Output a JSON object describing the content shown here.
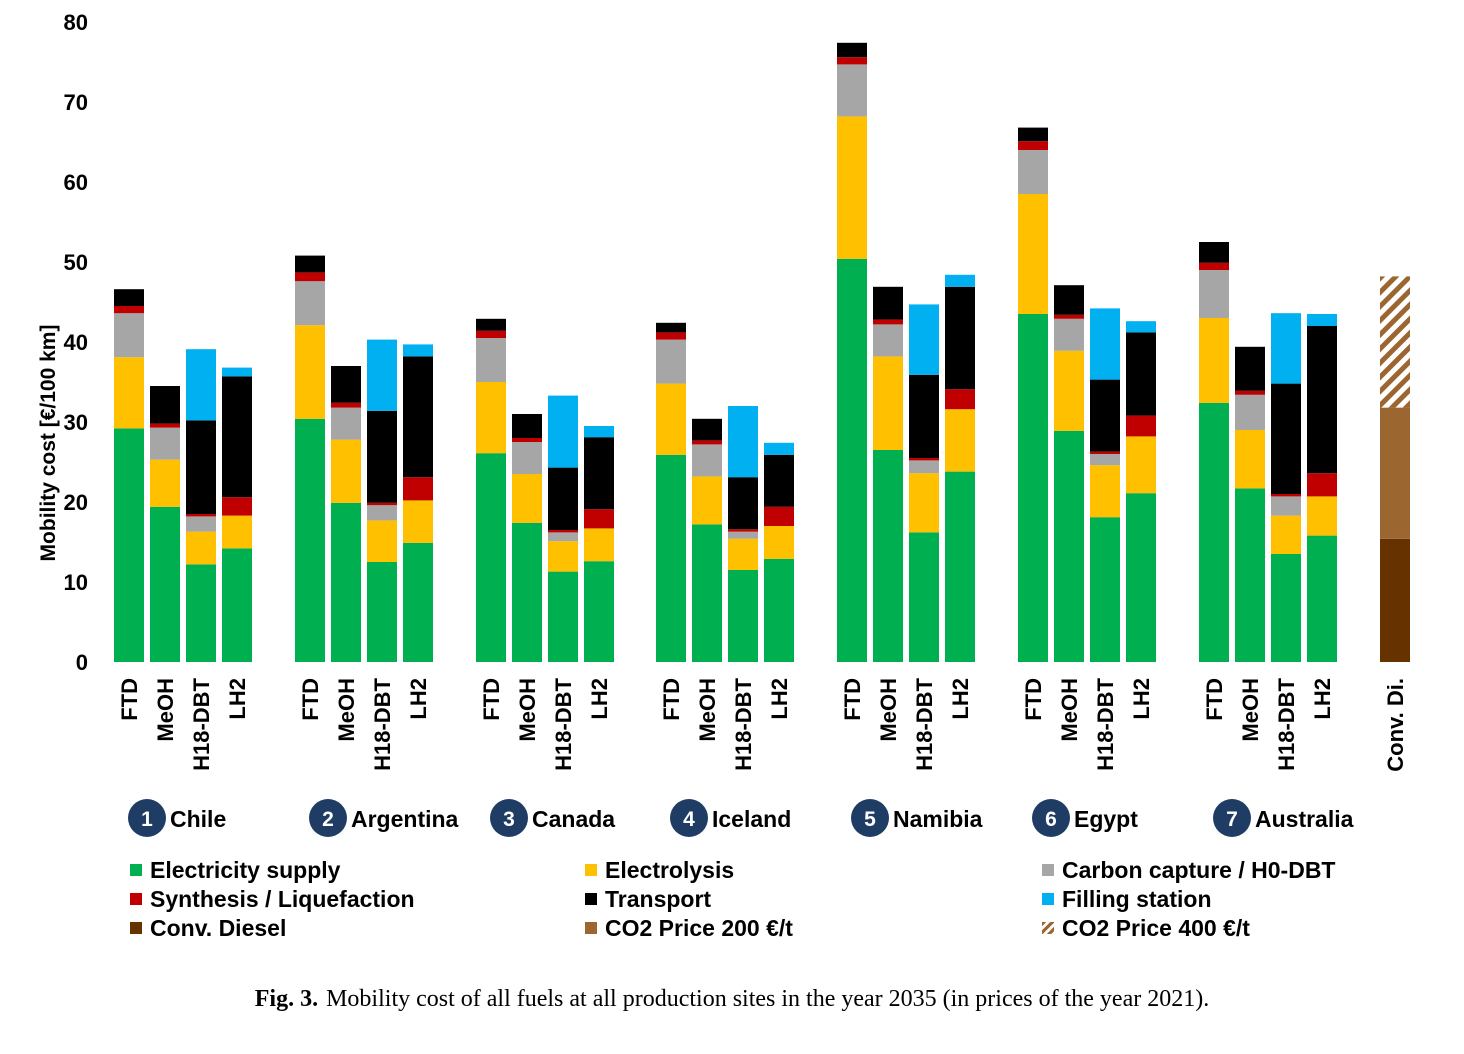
{
  "chart_data": {
    "type": "bar",
    "stacked": true,
    "ylabel": "Mobility cost [€/100 km]",
    "ylim": [
      0,
      80
    ],
    "yticks": [
      0,
      10,
      20,
      30,
      40,
      50,
      60,
      70,
      80
    ],
    "grid": false,
    "legend_position": "bottom",
    "components": [
      {
        "name": "Electricity supply",
        "color": "#00b050"
      },
      {
        "name": "Electrolysis",
        "color": "#ffc000"
      },
      {
        "name": "Carbon capture / H0-DBT",
        "color": "#a6a6a6"
      },
      {
        "name": "Synthesis / Liquefaction",
        "color": "#c00000"
      },
      {
        "name": "Transport",
        "color": "#000000"
      },
      {
        "name": "Filling station",
        "color": "#00b0f0"
      }
    ],
    "fuels": [
      "FTD",
      "MeOH",
      "H18-DBT",
      "LH2"
    ],
    "sites": [
      {
        "number": "1",
        "name": "Chile",
        "bars": [
          {
            "fuel": "FTD",
            "values": [
              29.2,
              8.9,
              5.5,
              0.9,
              2.1,
              0
            ]
          },
          {
            "fuel": "MeOH",
            "values": [
              19.4,
              5.9,
              4.0,
              0.5,
              4.7,
              0
            ]
          },
          {
            "fuel": "H18-DBT",
            "values": [
              12.2,
              4.1,
              1.9,
              0.3,
              11.7,
              8.9
            ]
          },
          {
            "fuel": "LH2",
            "values": [
              14.2,
              4.1,
              0,
              2.3,
              15.1,
              1.1
            ]
          }
        ]
      },
      {
        "number": "2",
        "name": "Argentina",
        "bars": [
          {
            "fuel": "FTD",
            "values": [
              30.4,
              11.7,
              5.5,
              1.1,
              2.1,
              0
            ]
          },
          {
            "fuel": "MeOH",
            "values": [
              19.9,
              7.9,
              4.0,
              0.6,
              4.6,
              0
            ]
          },
          {
            "fuel": "H18-DBT",
            "values": [
              12.5,
              5.2,
              1.9,
              0.3,
              11.5,
              8.9
            ]
          },
          {
            "fuel": "LH2",
            "values": [
              14.9,
              5.3,
              0,
              2.9,
              15.1,
              1.5
            ]
          }
        ]
      },
      {
        "number": "3",
        "name": "Canada",
        "bars": [
          {
            "fuel": "FTD",
            "values": [
              26.1,
              8.9,
              5.5,
              0.9,
              1.5,
              0
            ]
          },
          {
            "fuel": "MeOH",
            "values": [
              17.4,
              6.1,
              4.0,
              0.5,
              3.0,
              0
            ]
          },
          {
            "fuel": "H18-DBT",
            "values": [
              11.3,
              3.8,
              1.1,
              0.3,
              7.8,
              9.0
            ]
          },
          {
            "fuel": "LH2",
            "values": [
              12.6,
              4.1,
              0,
              2.4,
              9.0,
              1.4
            ]
          }
        ]
      },
      {
        "number": "4",
        "name": "Iceland",
        "bars": [
          {
            "fuel": "FTD",
            "values": [
              25.9,
              8.9,
              5.5,
              0.9,
              1.2,
              0
            ]
          },
          {
            "fuel": "MeOH",
            "values": [
              17.2,
              6.0,
              4.0,
              0.5,
              2.7,
              0
            ]
          },
          {
            "fuel": "H18-DBT",
            "values": [
              11.5,
              3.9,
              0.9,
              0.3,
              6.5,
              8.9
            ]
          },
          {
            "fuel": "LH2",
            "values": [
              12.9,
              4.1,
              0,
              2.4,
              6.5,
              1.5
            ]
          }
        ]
      },
      {
        "number": "5",
        "name": "Namibia",
        "bars": [
          {
            "fuel": "FTD",
            "values": [
              50.4,
              17.8,
              6.5,
              0.9,
              1.8,
              0
            ]
          },
          {
            "fuel": "MeOH",
            "values": [
              26.5,
              11.7,
              4.0,
              0.6,
              4.1,
              0
            ]
          },
          {
            "fuel": "H18-DBT",
            "values": [
              16.2,
              7.4,
              1.6,
              0.3,
              10.4,
              8.8
            ]
          },
          {
            "fuel": "LH2",
            "values": [
              23.8,
              7.8,
              0,
              2.5,
              12.8,
              1.5
            ]
          }
        ]
      },
      {
        "number": "6",
        "name": "Egypt",
        "bars": [
          {
            "fuel": "FTD",
            "values": [
              43.5,
              15.0,
              5.5,
              1.1,
              1.7,
              0
            ]
          },
          {
            "fuel": "MeOH",
            "values": [
              28.9,
              10.0,
              4.0,
              0.5,
              3.7,
              0
            ]
          },
          {
            "fuel": "H18-DBT",
            "values": [
              18.1,
              6.5,
              1.4,
              0.3,
              9.0,
              8.9
            ]
          },
          {
            "fuel": "LH2",
            "values": [
              21.1,
              7.1,
              0,
              2.6,
              10.4,
              1.4
            ]
          }
        ]
      },
      {
        "number": "7",
        "name": "Australia",
        "bars": [
          {
            "fuel": "FTD",
            "values": [
              32.4,
              10.6,
              6.0,
              0.9,
              2.6,
              0
            ]
          },
          {
            "fuel": "MeOH",
            "values": [
              21.7,
              7.3,
              4.4,
              0.5,
              5.5,
              0
            ]
          },
          {
            "fuel": "H18-DBT",
            "values": [
              13.5,
              4.8,
              2.4,
              0.3,
              13.8,
              8.8
            ]
          },
          {
            "fuel": "LH2",
            "values": [
              15.8,
              4.9,
              0,
              2.9,
              18.4,
              1.5
            ]
          }
        ]
      }
    ],
    "reference": {
      "label": "Conv. Di.",
      "components": [
        {
          "name": "Conv. Diesel",
          "color": "#663300",
          "value": 15.4
        },
        {
          "name": "CO2 Price 200 €/t",
          "color": "#9c6630",
          "value": 16.4
        },
        {
          "name": "CO2 Price 400 €/t",
          "color": "#9c6630",
          "pattern": "hatched",
          "value": 16.4
        }
      ]
    }
  },
  "legend": [
    {
      "label": "Electricity supply",
      "color": "#00b050"
    },
    {
      "label": "Electrolysis",
      "color": "#ffc000"
    },
    {
      "label": "Carbon capture / H0-DBT",
      "color": "#a6a6a6"
    },
    {
      "label": "Synthesis / Liquefaction",
      "color": "#c00000"
    },
    {
      "label": "Transport",
      "color": "#000000"
    },
    {
      "label": "Filling station",
      "color": "#00b0f0"
    },
    {
      "label": "Conv. Diesel",
      "color": "#663300"
    },
    {
      "label": "CO2 Price 200 €/t",
      "color": "#9c6630"
    },
    {
      "label": "CO2 Price 400 €/t",
      "color": "#9c6630",
      "pattern": "hatched"
    }
  ],
  "caption": {
    "label": "Fig. 3.",
    "text": "Mobility cost of all fuels at all production sites in the year 2035 (in prices of the year 2021)."
  }
}
